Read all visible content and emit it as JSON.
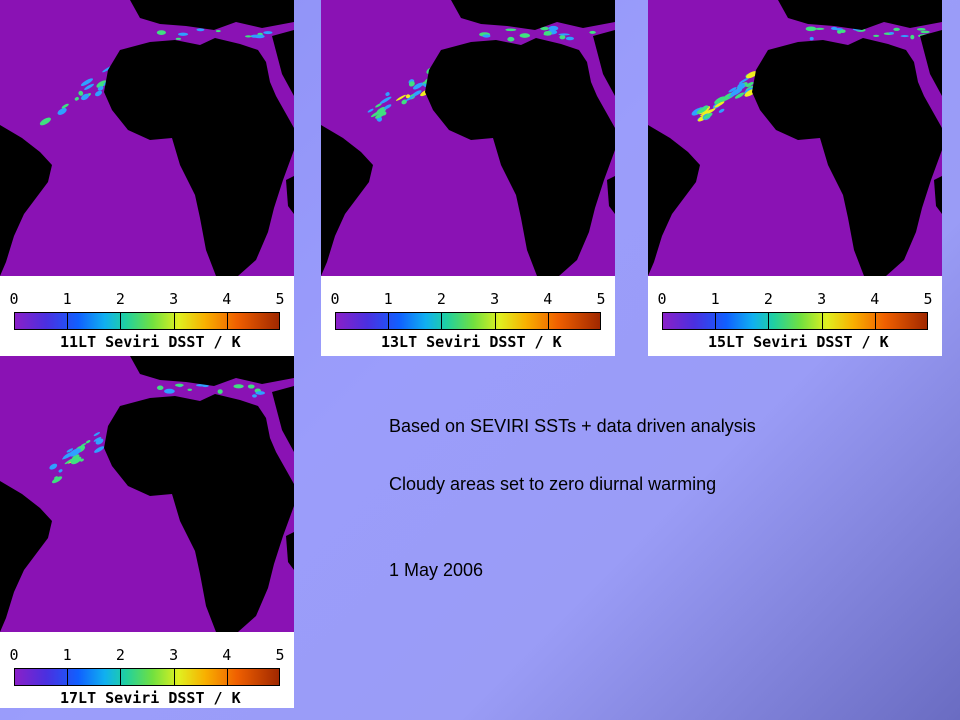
{
  "colors": {
    "ocean": "#8a12b4",
    "land": "#000000",
    "warming_low": "#30a0ff",
    "warming_mid": "#40e080",
    "warming_high": "#f0f020"
  },
  "panels": [
    {
      "id": "11lt",
      "caption": "11LT Seviri DSST / K",
      "warming_level": 0.25
    },
    {
      "id": "13lt",
      "caption": "13LT Seviri DSST / K",
      "warming_level": 0.7
    },
    {
      "id": "15lt",
      "caption": "15LT Seviri DSST / K",
      "warming_level": 0.85
    },
    {
      "id": "17lt",
      "caption": "17LT Seviri DSST / K",
      "warming_level": 0.5
    }
  ],
  "colorbar": {
    "ticks": [
      "0",
      "1",
      "2",
      "3",
      "4",
      "5"
    ],
    "min": 0,
    "max": 5
  },
  "notes": {
    "line1": "Based on SEVIRI SSTs + data driven analysis",
    "line2": "Cloudy areas set to zero diurnal warming",
    "date": "1 May 2006"
  }
}
